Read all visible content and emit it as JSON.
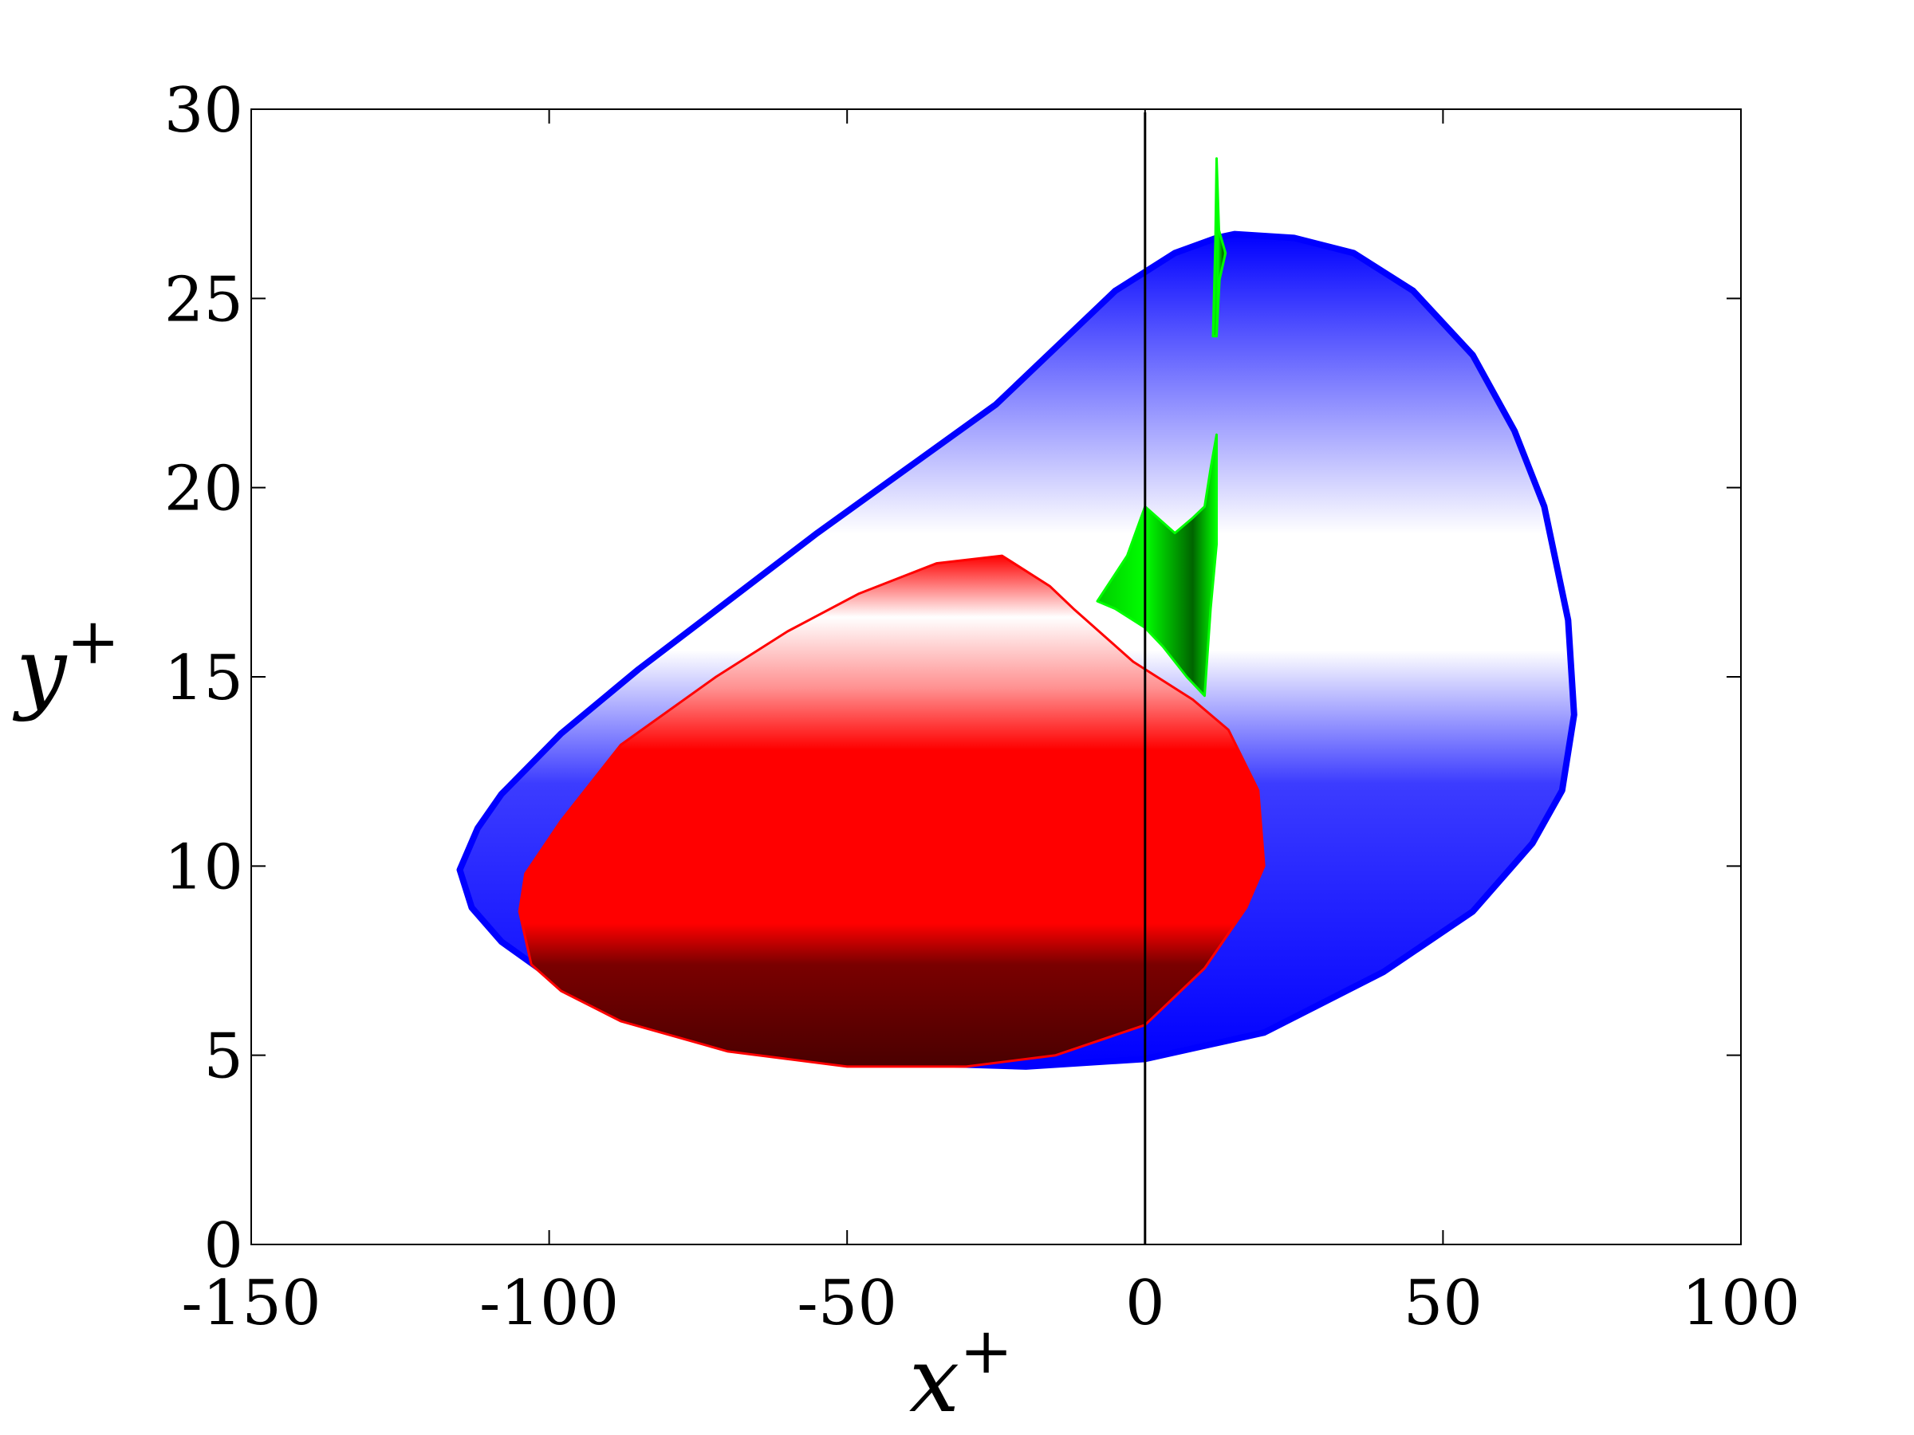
{
  "chart_data": {
    "type": "area",
    "title": "",
    "xlabel": "x",
    "xlabel_superscript": "+",
    "ylabel": "y",
    "ylabel_superscript": "+",
    "xlim": [
      -150,
      100
    ],
    "ylim": [
      0,
      30
    ],
    "xticks": [
      -150,
      -100,
      -50,
      0,
      50,
      100
    ],
    "yticks": [
      0,
      5,
      10,
      15,
      20,
      25,
      30
    ],
    "xtick_labels": [
      "-150",
      "-100",
      "-50",
      "0",
      "50",
      "100"
    ],
    "ytick_labels": [
      "0",
      "5",
      "10",
      "15",
      "20",
      "25",
      "30"
    ],
    "grid": false,
    "reference_line": {
      "x": 0,
      "color": "#000000"
    },
    "series": [
      {
        "color": "#0000ff",
        "outline": [
          [
            -115,
            9.9
          ],
          [
            -113,
            8.9
          ],
          [
            -108,
            8.0
          ],
          [
            -100,
            7.1
          ],
          [
            -80,
            5.9
          ],
          [
            -60,
            5.2
          ],
          [
            -40,
            4.8
          ],
          [
            -20,
            4.7
          ],
          [
            0,
            4.9
          ],
          [
            20,
            5.6
          ],
          [
            40,
            7.2
          ],
          [
            55,
            8.8
          ],
          [
            65,
            10.6
          ],
          [
            70,
            12.0
          ],
          [
            72,
            14.0
          ],
          [
            71,
            16.5
          ],
          [
            67,
            19.5
          ],
          [
            62,
            21.5
          ],
          [
            55,
            23.5
          ],
          [
            45,
            25.2
          ],
          [
            35,
            26.2
          ],
          [
            25,
            26.6
          ],
          [
            15,
            26.7
          ],
          [
            12,
            26.6
          ],
          [
            5,
            26.2
          ],
          [
            0,
            25.7
          ],
          [
            -5,
            25.2
          ],
          [
            -15,
            23.7
          ],
          [
            -25,
            22.2
          ],
          [
            -40,
            20.5
          ],
          [
            -55,
            18.8
          ],
          [
            -70,
            17.0
          ],
          [
            -85,
            15.2
          ],
          [
            -98,
            13.5
          ],
          [
            -108,
            11.9
          ],
          [
            -112,
            11.0
          ]
        ]
      },
      {
        "color": "#00ff00",
        "outline": [
          [
            -8,
            17.0
          ],
          [
            -3,
            18.2
          ],
          [
            0,
            19.5
          ],
          [
            5,
            18.8
          ],
          [
            8,
            19.2
          ],
          [
            10,
            19.5
          ],
          [
            11,
            20.5
          ],
          [
            12,
            21.4
          ],
          [
            12,
            20.0
          ],
          [
            12,
            18.5
          ],
          [
            11,
            16.8
          ],
          [
            10,
            14.5
          ],
          [
            7,
            15.0
          ],
          [
            3,
            15.8
          ],
          [
            0,
            16.3
          ],
          [
            -5,
            16.8
          ]
        ]
      },
      {
        "color": "#00ff00",
        "outline": [
          [
            11.4,
            24.0
          ],
          [
            11.8,
            26.5
          ],
          [
            12.0,
            28.7
          ],
          [
            12.4,
            26.8
          ],
          [
            13.5,
            26.2
          ],
          [
            12.5,
            25.5
          ],
          [
            12.0,
            24.0
          ]
        ]
      },
      {
        "color": "#ff0000",
        "outline": [
          [
            -105,
            8.8
          ],
          [
            -103,
            7.4
          ],
          [
            -98,
            6.7
          ],
          [
            -88,
            5.9
          ],
          [
            -70,
            5.1
          ],
          [
            -50,
            4.7
          ],
          [
            -30,
            4.7
          ],
          [
            -15,
            5.0
          ],
          [
            0,
            5.8
          ],
          [
            10,
            7.3
          ],
          [
            17,
            8.9
          ],
          [
            20,
            10.0
          ],
          [
            19,
            12.0
          ],
          [
            14,
            13.6
          ],
          [
            8,
            14.4
          ],
          [
            -2,
            15.4
          ],
          [
            -12,
            16.8
          ],
          [
            -16,
            17.4
          ],
          [
            -24,
            18.2
          ],
          [
            -35,
            18.0
          ],
          [
            -48,
            17.2
          ],
          [
            -60,
            16.2
          ],
          [
            -72,
            15.0
          ],
          [
            -88,
            13.2
          ],
          [
            -98,
            11.2
          ],
          [
            -104,
            9.8
          ]
        ]
      }
    ]
  }
}
